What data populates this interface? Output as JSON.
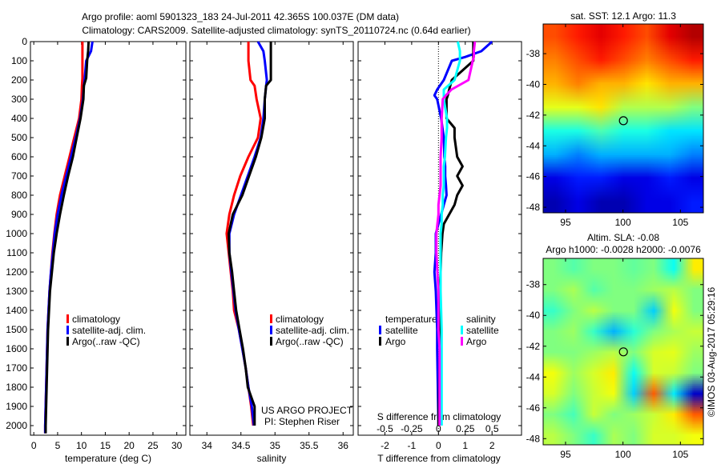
{
  "title": {
    "line1": "Argo profile: aoml 5901323_183 24-Jul-2011 42.365S 100.037E (DM data)",
    "line2": "Climatology: CARS2009. Satellite-adjusted climatology: synTS_20110724.nc (0.64d earlier)"
  },
  "credit": "©IMOS 03-Aug-2017 05:29:16",
  "project": {
    "line1": "US ARGO PROJECT",
    "line2": "PI: Stephen Riser"
  },
  "colors": {
    "climatology": "#ff0000",
    "satellite": "#0000ff",
    "argo": "#000000",
    "sal_satellite": "#00ffff",
    "sal_argo": "#ff00ff"
  },
  "chart_data": [
    {
      "type": "line",
      "name": "temperature-profile",
      "xlabel": "temperature (deg C)",
      "ylabel": "",
      "xlim": [
        -0.7,
        31.9
      ],
      "ylim": [
        0,
        2050
      ],
      "xticks": [
        0,
        5,
        10,
        15,
        20,
        25,
        30
      ],
      "yticks": [
        0,
        100,
        200,
        300,
        400,
        500,
        600,
        700,
        800,
        900,
        1000,
        1100,
        1200,
        1300,
        1400,
        1500,
        1600,
        1700,
        1800,
        1900,
        2000
      ],
      "legend": [
        "climatology",
        "satellite-adj. clim.",
        "Argo(..raw -QC)"
      ],
      "depth": [
        0,
        50,
        100,
        190,
        230,
        300,
        400,
        500,
        600,
        700,
        800,
        900,
        1000,
        1100,
        1200,
        1300,
        1400,
        1500,
        1600,
        1800,
        2000,
        2040
      ],
      "series": [
        {
          "name": "climatology",
          "color": "#ff0000",
          "values": [
            10.2,
            10.2,
            10.2,
            10.2,
            10.1,
            10.0,
            9.5,
            8.5,
            7.5,
            6.5,
            5.5,
            4.8,
            4.3,
            3.9,
            3.6,
            3.3,
            3.1,
            2.9,
            2.8,
            2.6,
            2.4,
            2.4
          ]
        },
        {
          "name": "satellite-adj. clim.",
          "color": "#0000ff",
          "values": [
            12.3,
            12.0,
            11.0,
            10.7,
            10.5,
            10.3,
            9.7,
            8.8,
            7.8,
            6.8,
            5.8,
            5.0,
            4.4,
            4.0,
            3.6,
            3.3,
            3.1,
            2.9,
            2.8,
            2.6,
            2.4,
            2.4
          ]
        },
        {
          "name": "Argo(..raw -QC)",
          "color": "#000000",
          "values": [
            11.5,
            11.4,
            11.2,
            11.0,
            10.5,
            10.4,
            9.8,
            9.0,
            8.2,
            7.2,
            6.3,
            5.5,
            4.8,
            4.2,
            3.8,
            3.4,
            3.2,
            3.0,
            2.9,
            2.7,
            2.5,
            2.5
          ]
        }
      ]
    },
    {
      "type": "line",
      "name": "salinity-profile",
      "xlabel": "salinity",
      "xlim": [
        33.75,
        36.15
      ],
      "ylim": [
        0,
        2050
      ],
      "xticks": [
        34,
        34.5,
        35,
        35.5,
        36
      ],
      "legend": [
        "climatology",
        "satellite-adj. clim.",
        "Argo(..raw -QC)"
      ],
      "depth": [
        0,
        50,
        100,
        200,
        230,
        300,
        400,
        500,
        600,
        700,
        800,
        900,
        1000,
        1100,
        1200,
        1300,
        1400,
        1500,
        1600,
        1700,
        1800,
        1900,
        2000
      ],
      "series": [
        {
          "name": "climatology",
          "color": "#ff0000",
          "values": [
            34.61,
            34.61,
            34.61,
            34.64,
            34.7,
            34.73,
            34.79,
            34.75,
            34.61,
            34.49,
            34.4,
            34.33,
            34.29,
            34.32,
            34.35,
            34.38,
            34.4,
            34.47,
            34.52,
            34.57,
            34.61,
            34.65,
            34.68
          ]
        },
        {
          "name": "satellite-adj. clim.",
          "color": "#0000ff",
          "values": [
            34.75,
            34.83,
            34.85,
            34.88,
            34.87,
            34.85,
            34.83,
            34.79,
            34.7,
            34.6,
            34.5,
            34.4,
            34.33,
            34.33,
            34.36,
            34.39,
            34.42,
            34.47,
            34.52,
            34.57,
            34.61,
            34.66,
            34.69
          ]
        },
        {
          "name": "Argo(..raw -QC)",
          "color": "#000000",
          "values": [
            34.94,
            34.94,
            34.94,
            34.94,
            34.87,
            34.85,
            34.85,
            34.8,
            34.72,
            34.62,
            34.52,
            34.38,
            34.32,
            34.33,
            34.37,
            34.4,
            34.43,
            34.48,
            34.53,
            34.57,
            34.6,
            34.7,
            34.7
          ]
        }
      ]
    },
    {
      "type": "line",
      "name": "difference-profile",
      "xlabel": "T difference from climatology",
      "xlabel2": "S difference from climatology",
      "xlim": [
        -3,
        3.1
      ],
      "xlim_s": [
        -0.75,
        0.775
      ],
      "ylim": [
        0,
        2050
      ],
      "xticks": [
        -2,
        -1,
        0,
        1,
        2
      ],
      "xticks_s": [
        -0.5,
        -0.25,
        0,
        0.25,
        0.5
      ],
      "xticklabels_s": [
        "-0.5",
        "-0.25",
        "0",
        "0.25",
        "0.5"
      ],
      "legend": {
        "temp_title": "temperature",
        "sal_title": "salinity",
        "satellite": "satellite",
        "argo": "Argo"
      },
      "depth": [
        0,
        50,
        80,
        100,
        200,
        250,
        280,
        300,
        400,
        450,
        500,
        600,
        650,
        700,
        750,
        800,
        850,
        900,
        950,
        1000,
        1100,
        1200,
        1300,
        1500,
        1600,
        2000
      ],
      "series": [
        {
          "name": "temperature satellite",
          "color": "#0000ff",
          "axis": "T",
          "values": [
            2.0,
            1.6,
            1.0,
            0.5,
            0.2,
            -0.05,
            -0.15,
            -0.05,
            0.1,
            0.15,
            0.2,
            0.22,
            0.25,
            0.25,
            0.28,
            0.3,
            0.2,
            0.1,
            0.0,
            -0.1,
            -0.1,
            -0.15,
            -0.1,
            -0.05,
            -0.05,
            0.0
          ]
        },
        {
          "name": "temperature Argo",
          "color": "#000000",
          "axis": "T",
          "values": [
            1.3,
            1.3,
            1.3,
            1.3,
            0.5,
            0.4,
            0.35,
            0.3,
            0.3,
            0.6,
            0.6,
            0.7,
            0.9,
            0.7,
            0.9,
            0.7,
            0.6,
            0.4,
            0.2,
            0.15,
            0.1,
            0.08,
            0.05,
            0.05,
            0.05,
            0.0
          ]
        },
        {
          "name": "salinity satellite",
          "color": "#00ffff",
          "axis": "S",
          "values": [
            0.18,
            0.2,
            0.2,
            0.2,
            0.15,
            0.05,
            0.05,
            0.05,
            0.08,
            0.08,
            0.07,
            0.06,
            0.05,
            0.05,
            0.05,
            0.04,
            0.04,
            0.03,
            0.03,
            0.02,
            0.02,
            0.02,
            0.02,
            0.03,
            0.03,
            0.03
          ]
        },
        {
          "name": "salinity Argo",
          "color": "#ff00ff",
          "axis": "S",
          "values": [
            0.34,
            0.33,
            0.33,
            0.32,
            0.28,
            0.12,
            0.07,
            0.04,
            0.03,
            0.03,
            0.03,
            0.02,
            0.02,
            0.02,
            0.02,
            0.01,
            0.0,
            0.0,
            -0.01,
            -0.02,
            -0.02,
            -0.01,
            0.0,
            0.0,
            0.01,
            0.01
          ]
        }
      ]
    },
    {
      "type": "heatmap",
      "name": "sst-map",
      "title": "sat. SST: 12.1 Argo: 11.3",
      "xlim": [
        93.05,
        107.0
      ],
      "ylim": [
        -48.36,
        -36.07
      ],
      "xticks": [
        95,
        100,
        105
      ],
      "yticks": [
        -38,
        -40,
        -42,
        -44,
        -46,
        -48
      ],
      "vrange": [
        7,
        17
      ],
      "float_position": [
        100.037,
        -42.365
      ],
      "grid": [
        [
          15,
          15.5,
          16,
          15.5,
          15,
          16,
          16.5
        ],
        [
          14.5,
          15,
          15.5,
          15,
          14.5,
          15,
          15.5
        ],
        [
          14,
          14.5,
          14,
          14,
          13.5,
          14,
          14
        ],
        [
          13,
          13,
          13.5,
          12.5,
          12.5,
          12.5,
          12
        ],
        [
          11,
          11,
          11.5,
          11,
          11,
          10.5,
          10.5
        ],
        [
          10,
          9.5,
          10,
          10,
          10,
          10,
          9.5
        ],
        [
          8,
          8.5,
          8.5,
          8,
          8,
          8.5,
          8
        ],
        [
          7.5,
          8,
          7.5,
          7.5,
          8,
          8,
          8.5
        ]
      ]
    },
    {
      "type": "heatmap",
      "name": "sla-map",
      "title": "Altim. SLA: -0.08",
      "subtitle": "Argo h1000: -0.0028 h2000: -0.0076",
      "xlim": [
        93.05,
        107.0
      ],
      "ylim": [
        -48.4,
        -36.3
      ],
      "xticks": [
        95,
        100,
        105
      ],
      "yticks": [
        -38,
        -40,
        -42,
        -44,
        -46,
        -48
      ],
      "vrange": [
        -0.35,
        0.35
      ],
      "float_position": [
        100.037,
        -42.365
      ],
      "grid": [
        [
          0,
          -0.03,
          0,
          0,
          -0.02,
          0,
          -0.08,
          0.1
        ],
        [
          0,
          0.03,
          -0.03,
          0,
          0,
          0.02,
          0.04,
          0
        ],
        [
          -0.05,
          0,
          0.04,
          0,
          0,
          -0.12,
          0.08,
          0
        ],
        [
          0,
          0.02,
          -0.05,
          -0.14,
          -0.06,
          0,
          0.03,
          0.05
        ],
        [
          0,
          0,
          0.02,
          0.04,
          0,
          0.06,
          0.07,
          0.02
        ],
        [
          0.08,
          0.02,
          0.06,
          0.1,
          -0.08,
          0.06,
          0.05,
          0
        ],
        [
          0.06,
          0,
          0.05,
          0.08,
          -0.12,
          0.2,
          -0.1,
          -0.3
        ],
        [
          0,
          -0.04,
          0.05,
          0,
          0.02,
          0.05,
          0.1,
          0.2
        ],
        [
          0.04,
          0,
          -0.05,
          0.03,
          0,
          0.06,
          0.06,
          0.08
        ]
      ]
    }
  ]
}
